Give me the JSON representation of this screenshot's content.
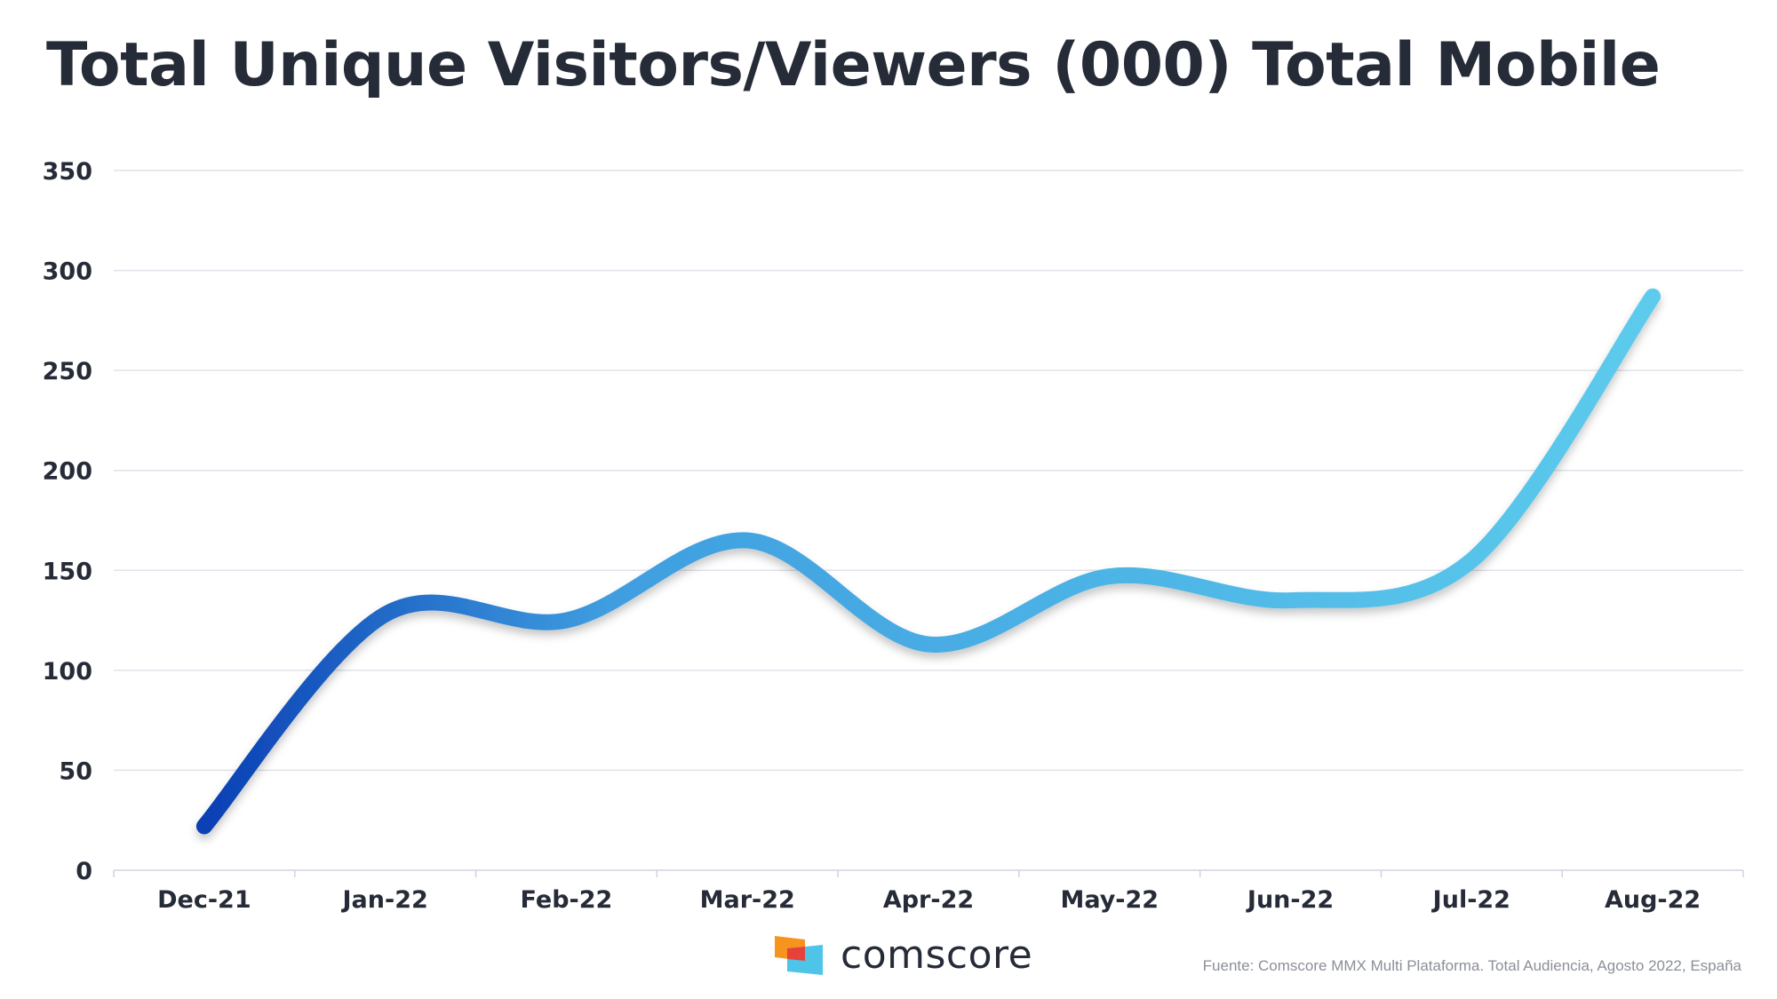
{
  "title": "Total Unique Visitors/Viewers (000) Total Mobile",
  "footer": {
    "brand": "comscore",
    "source": "Fuente: Comscore MMX Multi Plataforma. Total Audiencia, Agosto 2022, España"
  },
  "colors": {
    "title": "#262b38",
    "axis_text": "#262b38",
    "grid": "#dfe2ea",
    "line_start": "#0a3fb4",
    "line_mid": "#3f9ee0",
    "line_end": "#5ccbec",
    "logo_orange": "#f7941d",
    "logo_red": "#e8413b",
    "logo_cyan": "#4ec4e8"
  },
  "chart_data": {
    "type": "line",
    "categories": [
      "Dec-21",
      "Jan-22",
      "Feb-22",
      "Mar-22",
      "Apr-22",
      "May-22",
      "Jun-22",
      "Jul-22",
      "Aug-22"
    ],
    "series": [
      {
        "values": [
          22,
          128,
          125,
          165,
          113,
          147,
          135,
          155,
          287
        ]
      }
    ],
    "ylim": [
      0,
      350
    ],
    "yticks": [
      0,
      50,
      100,
      150,
      200,
      250,
      300,
      350
    ],
    "grid": true,
    "smooth": true
  }
}
